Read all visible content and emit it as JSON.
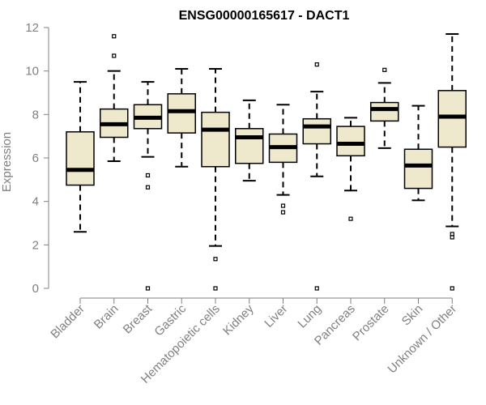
{
  "chart_data": {
    "type": "boxplot",
    "title": "ENSG00000165617 - DACT1",
    "ylabel": "Expression",
    "xlabel": "",
    "ylim": [
      0,
      12
    ],
    "yticks": [
      0,
      2,
      4,
      6,
      8,
      10,
      12
    ],
    "grid": false,
    "colors": {
      "box_fill": "#EEE8CD",
      "stroke": "#000000",
      "axis": "#808080"
    },
    "categories": [
      "Bladder",
      "Brain",
      "Breast",
      "Gastric",
      "Hematopoietic cells",
      "Kidney",
      "Liver",
      "Lung",
      "Pancreas",
      "Prostate",
      "Skin",
      "Unknown / Other"
    ],
    "boxes": [
      {
        "category": "Bladder",
        "whisker_low": 2.6,
        "q1": 4.75,
        "median": 5.45,
        "q3": 7.2,
        "whisker_high": 9.5,
        "outliers": []
      },
      {
        "category": "Brain",
        "whisker_low": 5.85,
        "q1": 6.95,
        "median": 7.55,
        "q3": 8.25,
        "whisker_high": 10.0,
        "outliers": [
          10.7,
          11.6
        ]
      },
      {
        "category": "Breast",
        "whisker_low": 6.05,
        "q1": 7.35,
        "median": 7.85,
        "q3": 8.45,
        "whisker_high": 9.5,
        "outliers": [
          5.2,
          4.65,
          0.0
        ]
      },
      {
        "category": "Gastric",
        "whisker_low": 5.6,
        "q1": 7.15,
        "median": 8.15,
        "q3": 8.95,
        "whisker_high": 10.1,
        "outliers": []
      },
      {
        "category": "Hematopoietic cells",
        "whisker_low": 1.95,
        "q1": 5.6,
        "median": 7.3,
        "q3": 8.1,
        "whisker_high": 10.1,
        "outliers": [
          1.35,
          0.0
        ]
      },
      {
        "category": "Kidney",
        "whisker_low": 4.95,
        "q1": 5.75,
        "median": 6.95,
        "q3": 7.35,
        "whisker_high": 8.65,
        "outliers": []
      },
      {
        "category": "Liver",
        "whisker_low": 4.3,
        "q1": 5.8,
        "median": 6.5,
        "q3": 7.1,
        "whisker_high": 8.45,
        "outliers": [
          3.8,
          3.5
        ]
      },
      {
        "category": "Lung",
        "whisker_low": 5.15,
        "q1": 6.65,
        "median": 7.45,
        "q3": 7.8,
        "whisker_high": 9.05,
        "outliers": [
          10.3,
          0.0
        ]
      },
      {
        "category": "Pancreas",
        "whisker_low": 4.5,
        "q1": 6.1,
        "median": 6.65,
        "q3": 7.45,
        "whisker_high": 7.85,
        "outliers": [
          3.2
        ]
      },
      {
        "category": "Prostate",
        "whisker_low": 6.45,
        "q1": 7.7,
        "median": 8.25,
        "q3": 8.55,
        "whisker_high": 9.45,
        "outliers": [
          10.05
        ]
      },
      {
        "category": "Skin",
        "whisker_low": 4.05,
        "q1": 4.6,
        "median": 5.65,
        "q3": 6.4,
        "whisker_high": 8.4,
        "outliers": []
      },
      {
        "category": "Unknown / Other",
        "whisker_low": 2.85,
        "q1": 6.5,
        "median": 7.9,
        "q3": 9.1,
        "whisker_high": 11.7,
        "outliers": [
          2.5,
          2.35,
          0.0
        ]
      }
    ]
  }
}
